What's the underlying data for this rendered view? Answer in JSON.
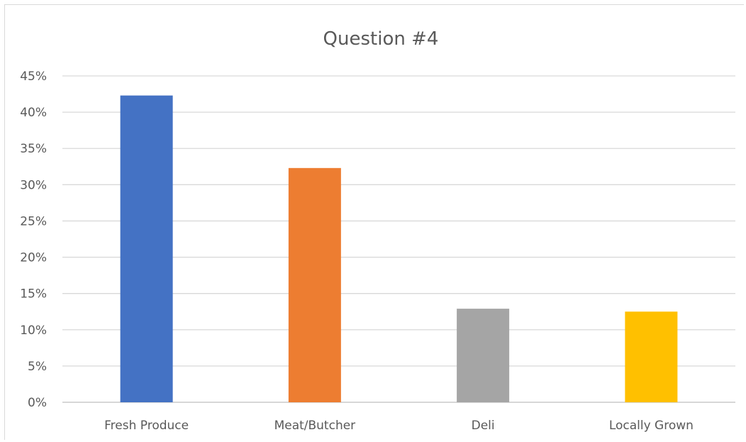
{
  "chart_data": {
    "type": "bar",
    "title": "Question #4",
    "xlabel": "",
    "ylabel": "",
    "categories": [
      "Fresh Produce",
      "Meat/Butcher",
      "Deli",
      "Locally Grown"
    ],
    "values": [
      0.423,
      0.323,
      0.129,
      0.125
    ],
    "colors": [
      "#4472C4",
      "#ED7D31",
      "#A5A5A5",
      "#FFC000"
    ],
    "ylim": [
      0,
      0.45
    ],
    "yticks": [
      0,
      0.05,
      0.1,
      0.15,
      0.2,
      0.25,
      0.3,
      0.35,
      0.4,
      0.45
    ],
    "ytick_labels": [
      "0%",
      "5%",
      "10%",
      "15%",
      "20%",
      "25%",
      "30%",
      "35%",
      "40%",
      "45%"
    ],
    "grid": true,
    "legend": "none"
  }
}
